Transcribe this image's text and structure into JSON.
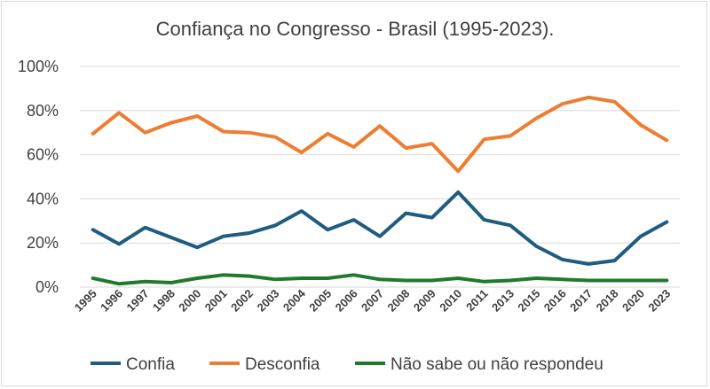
{
  "chart_data": {
    "type": "line",
    "title": "Confiança no Congresso - Brasil (1995-2023).",
    "xlabel": "",
    "ylabel": "",
    "categories": [
      "1995",
      "1996",
      "1997",
      "1998",
      "2000",
      "2001",
      "2002",
      "2003",
      "2004",
      "2005",
      "2006",
      "2007",
      "2008",
      "2009",
      "2010",
      "2011",
      "2013",
      "2015",
      "2016",
      "2017",
      "2018",
      "2020",
      "2023"
    ],
    "ylim": [
      0,
      100
    ],
    "yticks": [
      "0%",
      "20%",
      "40%",
      "60%",
      "80%",
      "100%"
    ],
    "ytick_values": [
      0,
      20,
      40,
      60,
      80,
      100
    ],
    "grid": true,
    "legend_position": "bottom",
    "series": [
      {
        "name": "Confia",
        "color": "#1f5c7f",
        "values": [
          26,
          19.5,
          27,
          22.5,
          18,
          23,
          24.5,
          28,
          34.5,
          26,
          30.5,
          23,
          33.5,
          31.5,
          43,
          30.5,
          28,
          18.5,
          12.5,
          10.5,
          12,
          23,
          29.5
        ]
      },
      {
        "name": "Desconfia",
        "color": "#ed7d31",
        "values": [
          69.5,
          79,
          70,
          74.5,
          77.5,
          70.5,
          70,
          68,
          61,
          69.5,
          63.5,
          73,
          63,
          65,
          52.5,
          67,
          68.5,
          76.5,
          83,
          86,
          84,
          73.5,
          66.5
        ]
      },
      {
        "name": "Não sabe ou não respondeu",
        "color": "#217a2b",
        "values": [
          4,
          1.5,
          2.5,
          2,
          4,
          5.5,
          5,
          3.5,
          4,
          4,
          5.5,
          3.5,
          3,
          3,
          4,
          2.5,
          3,
          4,
          3.5,
          3,
          3,
          3,
          3
        ]
      }
    ]
  }
}
